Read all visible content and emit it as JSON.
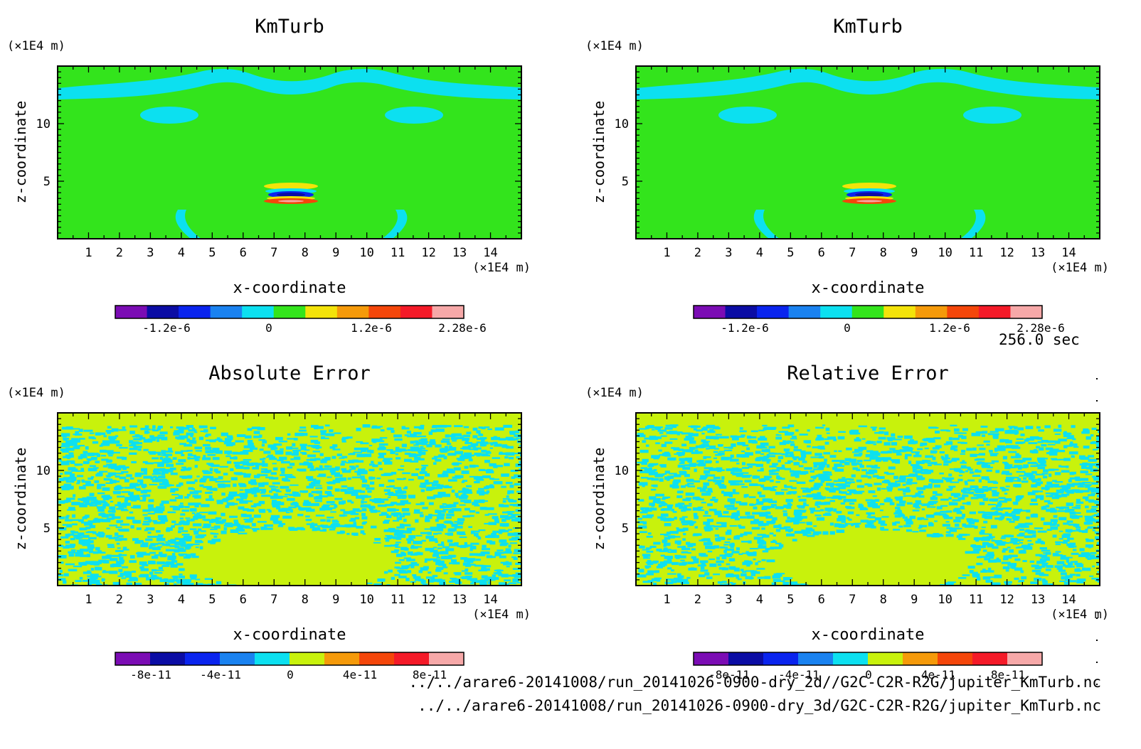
{
  "time_label": "256.0 sec",
  "files": [
    "../../arare6-20141008/run_20141026-0900-dry_2d//G2C-C2R-R2G/jupiter_KmTurb.nc",
    "../../arare6-20141008/run_20141026-0900-dry_3d/G2C-C2R-R2G/jupiter_KmTurb.nc"
  ],
  "colors": {
    "kmturb_levels": [
      "#7b0cb4",
      "#0b0ca4",
      "#0a24ee",
      "#1a82f0",
      "#0ce0f0",
      "#33e41c",
      "#f3e30a",
      "#f59a0a",
      "#f4460a",
      "#f41a28",
      "#f6a8a8"
    ],
    "error_levels": [
      "#7b0cb4",
      "#0b0ca4",
      "#0a24ee",
      "#1a82f0",
      "#0ce0f0",
      "#c8f20c",
      "#f59a0a",
      "#f4460a",
      "#f41a28",
      "#f6a8a8"
    ]
  },
  "chart_data": [
    {
      "type": "heatmap",
      "title": "KmTurb",
      "xlabel": "x-coordinate",
      "ylabel": "z-coordinate",
      "x_unit": "(×1E4 m)",
      "y_unit": "(×1E4 m)",
      "xlim": [
        0,
        15
      ],
      "ylim": [
        0,
        15
      ],
      "xticks": [
        "1",
        "2",
        "3",
        "4",
        "5",
        "6",
        "7",
        "8",
        "9",
        "10",
        "11",
        "12",
        "13",
        "14"
      ],
      "yticks": [
        "5",
        "10"
      ],
      "pattern": "kmturb",
      "colorbar": {
        "ticks": [
          "-1.2e-6",
          "0",
          "1.2e-6",
          "2.28e-6"
        ],
        "palette": "kmturb_levels"
      }
    },
    {
      "type": "heatmap",
      "title": "KmTurb",
      "xlabel": "x-coordinate",
      "ylabel": "z-coordinate",
      "x_unit": "(×1E4 m)",
      "y_unit": "(×1E4 m)",
      "xlim": [
        0,
        15
      ],
      "ylim": [
        0,
        15
      ],
      "xticks": [
        "1",
        "2",
        "3",
        "4",
        "5",
        "6",
        "7",
        "8",
        "9",
        "10",
        "11",
        "12",
        "13",
        "14"
      ],
      "yticks": [
        "5",
        "10"
      ],
      "pattern": "kmturb",
      "colorbar": {
        "ticks": [
          "-1.2e-6",
          "0",
          "1.2e-6",
          "2.28e-6"
        ],
        "palette": "kmturb_levels"
      }
    },
    {
      "type": "heatmap",
      "title": "Absolute Error",
      "xlabel": "x-coordinate",
      "ylabel": "z-coordinate",
      "x_unit": "(×1E4 m)",
      "y_unit": "(×1E4 m)",
      "xlim": [
        0,
        15
      ],
      "ylim": [
        0,
        15
      ],
      "xticks": [
        "1",
        "2",
        "3",
        "4",
        "5",
        "6",
        "7",
        "8",
        "9",
        "10",
        "11",
        "12",
        "13",
        "14"
      ],
      "yticks": [
        "5",
        "10"
      ],
      "pattern": "noise",
      "colorbar": {
        "ticks": [
          "-8e-11",
          "-4e-11",
          "0",
          "4e-11",
          "8e-11"
        ],
        "palette": "error_levels"
      }
    },
    {
      "type": "heatmap",
      "title": "Relative Error",
      "xlabel": "x-coordinate",
      "ylabel": "z-coordinate",
      "x_unit": "(×1E4 m)",
      "y_unit": "(×1E4 m)",
      "xlim": [
        0,
        15
      ],
      "ylim": [
        0,
        15
      ],
      "xticks": [
        "1",
        "2",
        "3",
        "4",
        "5",
        "6",
        "7",
        "8",
        "9",
        "10",
        "11",
        "12",
        "13",
        "14"
      ],
      "yticks": [
        "5",
        "10"
      ],
      "pattern": "noise",
      "colorbar": {
        "ticks": [
          "-8e-11",
          "-4e-11",
          "0",
          "4e-11",
          "8e-11"
        ],
        "palette": "error_levels"
      }
    }
  ]
}
